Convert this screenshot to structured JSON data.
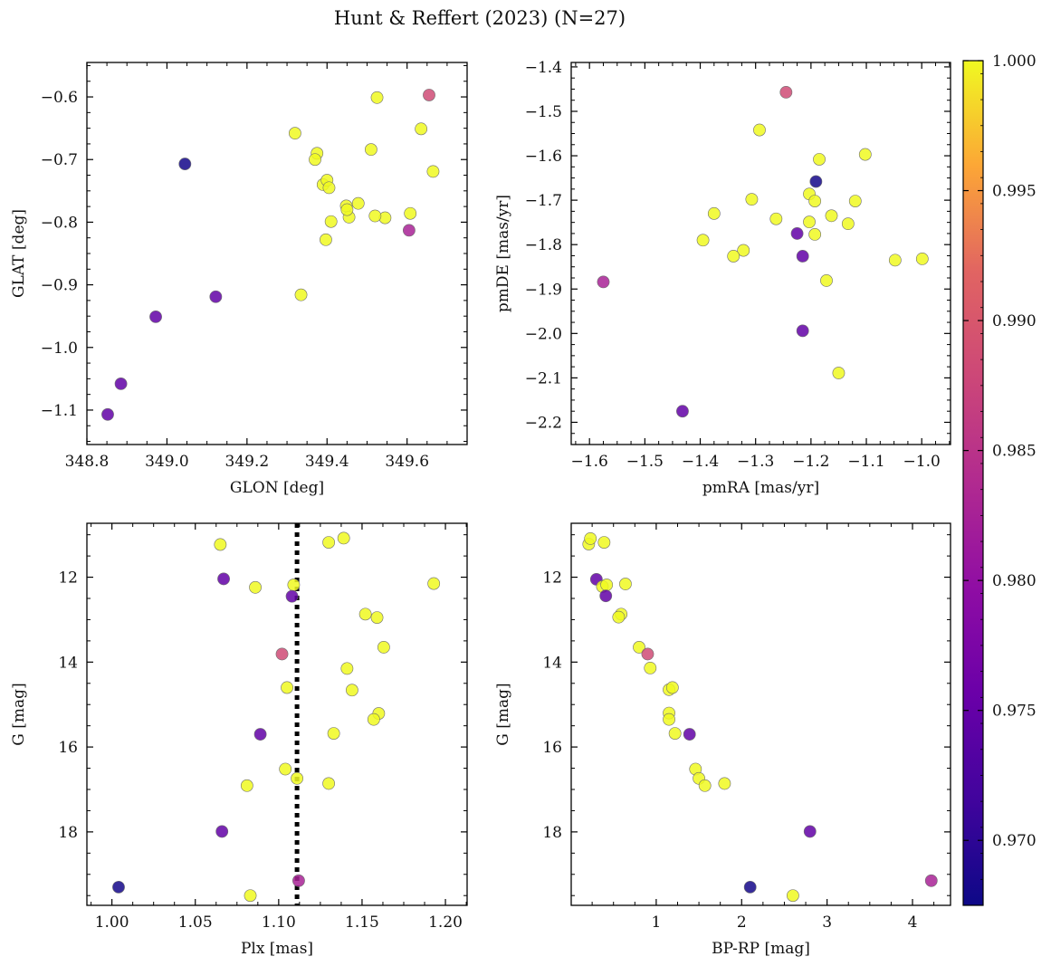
{
  "figure": {
    "title": "Hunt & Reffert (2023) (N=27)"
  },
  "colorbar": {
    "min": 0.9675,
    "max": 1.0,
    "ticks": [
      "0.970",
      "0.975",
      "0.980",
      "0.985",
      "0.990",
      "0.995",
      "1.000"
    ],
    "tick_values": [
      0.97,
      0.975,
      0.98,
      0.985,
      0.99,
      0.995,
      1.0
    ],
    "colormap": "plasma"
  },
  "chart_data": [
    {
      "type": "scatter",
      "xlabel": "GLON [deg]",
      "ylabel": "GLAT [deg]",
      "xlim": [
        348.8,
        349.75
      ],
      "ylim": [
        -1.155,
        -0.545
      ],
      "y_inverted": false,
      "xticks": [
        348.8,
        349.0,
        349.2,
        349.4,
        349.6
      ],
      "xtick_labels": [
        "348.8",
        "349.0",
        "349.2",
        "349.4",
        "349.6"
      ],
      "yticks": [
        -1.1,
        -1.0,
        -0.9,
        -0.8,
        -0.7,
        -0.6
      ],
      "ytick_labels": [
        "−1.1",
        "−1.0",
        "−0.9",
        "−0.8",
        "−0.7",
        "−0.6"
      ],
      "points": [
        {
          "x": 349.525,
          "y": -0.601,
          "c": 1.0
        },
        {
          "x": 349.655,
          "y": -0.597,
          "c": 0.986
        },
        {
          "x": 349.635,
          "y": -0.651,
          "c": 1.0
        },
        {
          "x": 349.665,
          "y": -0.719,
          "c": 1.0
        },
        {
          "x": 349.32,
          "y": -0.658,
          "c": 1.0
        },
        {
          "x": 349.51,
          "y": -0.684,
          "c": 1.0
        },
        {
          "x": 349.375,
          "y": -0.69,
          "c": 1.0
        },
        {
          "x": 349.37,
          "y": -0.7,
          "c": 1.0
        },
        {
          "x": 349.39,
          "y": -0.74,
          "c": 1.0
        },
        {
          "x": 349.4,
          "y": -0.733,
          "c": 1.0
        },
        {
          "x": 349.405,
          "y": -0.745,
          "c": 1.0
        },
        {
          "x": 349.448,
          "y": -0.774,
          "c": 1.0
        },
        {
          "x": 349.478,
          "y": -0.77,
          "c": 1.0
        },
        {
          "x": 349.41,
          "y": -0.799,
          "c": 1.0
        },
        {
          "x": 349.455,
          "y": -0.792,
          "c": 1.0
        },
        {
          "x": 349.545,
          "y": -0.793,
          "c": 1.0
        },
        {
          "x": 349.608,
          "y": -0.786,
          "c": 1.0
        },
        {
          "x": 349.605,
          "y": -0.813,
          "c": 0.981
        },
        {
          "x": 349.397,
          "y": -0.828,
          "c": 1.0
        },
        {
          "x": 349.335,
          "y": -0.916,
          "c": 1.0
        },
        {
          "x": 349.045,
          "y": -0.707,
          "c": 0.968
        },
        {
          "x": 349.122,
          "y": -0.919,
          "c": 0.974
        },
        {
          "x": 348.972,
          "y": -0.951,
          "c": 0.974
        },
        {
          "x": 348.885,
          "y": -1.058,
          "c": 0.974
        },
        {
          "x": 348.852,
          "y": -1.107,
          "c": 0.974
        },
        {
          "x": 349.45,
          "y": -0.78,
          "c": 1.0
        },
        {
          "x": 349.52,
          "y": -0.79,
          "c": 1.0
        }
      ]
    },
    {
      "type": "scatter",
      "xlabel": "pmRA [mas/yr]",
      "ylabel": "pmDE [mas/yr]",
      "xlim": [
        -1.633,
        -0.948
      ],
      "ylim": [
        -2.25,
        -1.39
      ],
      "y_inverted": false,
      "xticks": [
        -1.6,
        -1.5,
        -1.4,
        -1.3,
        -1.2,
        -1.1,
        -1.0
      ],
      "xtick_labels": [
        "−1.6",
        "−1.5",
        "−1.4",
        "−1.3",
        "−1.2",
        "−1.1",
        "−1.0"
      ],
      "yticks": [
        -2.2,
        -2.1,
        -2.0,
        -1.9,
        -1.8,
        -1.7,
        -1.6,
        -1.5,
        -1.4
      ],
      "ytick_labels": [
        "−2.2",
        "−2.1",
        "−2.0",
        "−1.9",
        "−1.8",
        "−1.7",
        "−1.6",
        "−1.5",
        "−1.4"
      ],
      "points": [
        {
          "x": -1.245,
          "y": -1.457,
          "c": 0.986
        },
        {
          "x": -1.293,
          "y": -1.542,
          "c": 1.0
        },
        {
          "x": -1.102,
          "y": -1.597,
          "c": 1.0
        },
        {
          "x": -1.185,
          "y": -1.608,
          "c": 1.0
        },
        {
          "x": -1.191,
          "y": -1.658,
          "c": 0.968
        },
        {
          "x": -1.203,
          "y": -1.686,
          "c": 1.0
        },
        {
          "x": -1.307,
          "y": -1.698,
          "c": 1.0
        },
        {
          "x": -1.193,
          "y": -1.702,
          "c": 1.0
        },
        {
          "x": -1.12,
          "y": -1.702,
          "c": 1.0
        },
        {
          "x": -1.375,
          "y": -1.73,
          "c": 1.0
        },
        {
          "x": -1.163,
          "y": -1.735,
          "c": 1.0
        },
        {
          "x": -1.263,
          "y": -1.742,
          "c": 1.0
        },
        {
          "x": -1.203,
          "y": -1.749,
          "c": 1.0
        },
        {
          "x": -1.133,
          "y": -1.753,
          "c": 1.0
        },
        {
          "x": -1.225,
          "y": -1.775,
          "c": 0.974
        },
        {
          "x": -1.193,
          "y": -1.777,
          "c": 1.0
        },
        {
          "x": -1.395,
          "y": -1.79,
          "c": 1.0
        },
        {
          "x": -1.322,
          "y": -1.813,
          "c": 1.0
        },
        {
          "x": -1.215,
          "y": -1.826,
          "c": 0.974
        },
        {
          "x": -1.34,
          "y": -1.826,
          "c": 1.0
        },
        {
          "x": -1.048,
          "y": -1.835,
          "c": 1.0
        },
        {
          "x": -0.999,
          "y": -1.832,
          "c": 1.0
        },
        {
          "x": -1.172,
          "y": -1.881,
          "c": 1.0
        },
        {
          "x": -1.575,
          "y": -1.884,
          "c": 0.981
        },
        {
          "x": -1.215,
          "y": -1.994,
          "c": 0.974
        },
        {
          "x": -1.15,
          "y": -2.089,
          "c": 1.0
        },
        {
          "x": -1.432,
          "y": -2.175,
          "c": 0.974
        }
      ]
    },
    {
      "type": "scatter",
      "xlabel": "Plx [mas]",
      "ylabel": "G [mag]",
      "xlim": [
        0.985,
        1.213
      ],
      "ylim": [
        19.73,
        10.73
      ],
      "y_inverted": true,
      "reference_line": {
        "x": 1.111,
        "style": "dotted"
      },
      "xticks": [
        1.0,
        1.05,
        1.1,
        1.15,
        1.2
      ],
      "xtick_labels": [
        "1.00",
        "1.05",
        "1.10",
        "1.15",
        "1.20"
      ],
      "yticks": [
        12,
        14,
        16,
        18
      ],
      "ytick_labels": [
        "12",
        "14",
        "16",
        "18"
      ],
      "points": [
        {
          "x": 1.065,
          "y": 11.23,
          "c": 1.0
        },
        {
          "x": 1.139,
          "y": 11.08,
          "c": 1.0
        },
        {
          "x": 1.13,
          "y": 11.18,
          "c": 1.0
        },
        {
          "x": 1.067,
          "y": 12.04,
          "c": 0.974
        },
        {
          "x": 1.086,
          "y": 12.24,
          "c": 1.0
        },
        {
          "x": 1.109,
          "y": 12.18,
          "c": 1.0
        },
        {
          "x": 1.193,
          "y": 12.15,
          "c": 1.0
        },
        {
          "x": 1.108,
          "y": 12.45,
          "c": 0.974
        },
        {
          "x": 1.152,
          "y": 12.87,
          "c": 1.0
        },
        {
          "x": 1.159,
          "y": 12.95,
          "c": 1.0
        },
        {
          "x": 1.163,
          "y": 13.65,
          "c": 1.0
        },
        {
          "x": 1.102,
          "y": 13.81,
          "c": 0.986
        },
        {
          "x": 1.141,
          "y": 14.15,
          "c": 1.0
        },
        {
          "x": 1.105,
          "y": 14.6,
          "c": 1.0
        },
        {
          "x": 1.144,
          "y": 14.66,
          "c": 1.0
        },
        {
          "x": 1.16,
          "y": 15.21,
          "c": 1.0
        },
        {
          "x": 1.157,
          "y": 15.35,
          "c": 1.0
        },
        {
          "x": 1.089,
          "y": 15.7,
          "c": 0.974
        },
        {
          "x": 1.133,
          "y": 15.68,
          "c": 1.0
        },
        {
          "x": 1.104,
          "y": 16.52,
          "c": 1.0
        },
        {
          "x": 1.111,
          "y": 16.74,
          "c": 1.0
        },
        {
          "x": 1.081,
          "y": 16.91,
          "c": 1.0
        },
        {
          "x": 1.13,
          "y": 16.86,
          "c": 1.0
        },
        {
          "x": 1.066,
          "y": 17.99,
          "c": 0.974
        },
        {
          "x": 1.004,
          "y": 19.3,
          "c": 0.968
        },
        {
          "x": 1.112,
          "y": 19.15,
          "c": 0.981
        },
        {
          "x": 1.083,
          "y": 19.5,
          "c": 1.0
        }
      ]
    },
    {
      "type": "scatter",
      "xlabel": "BP-RP [mag]",
      "ylabel": "G [mag]",
      "xlim": [
        0.005,
        4.445
      ],
      "ylim": [
        19.73,
        10.73
      ],
      "y_inverted": true,
      "xticks": [
        1,
        2,
        3,
        4
      ],
      "xtick_labels": [
        "1",
        "2",
        "3",
        "4"
      ],
      "yticks": [
        12,
        14,
        16,
        18
      ],
      "ytick_labels": [
        "12",
        "14",
        "16",
        "18"
      ],
      "points": [
        {
          "x": 0.21,
          "y": 11.22,
          "c": 1.0
        },
        {
          "x": 0.23,
          "y": 11.09,
          "c": 1.0
        },
        {
          "x": 0.39,
          "y": 11.18,
          "c": 1.0
        },
        {
          "x": 0.3,
          "y": 12.05,
          "c": 0.974
        },
        {
          "x": 0.37,
          "y": 12.22,
          "c": 1.0
        },
        {
          "x": 0.42,
          "y": 12.18,
          "c": 1.0
        },
        {
          "x": 0.64,
          "y": 12.16,
          "c": 1.0
        },
        {
          "x": 0.41,
          "y": 12.44,
          "c": 0.974
        },
        {
          "x": 0.59,
          "y": 12.87,
          "c": 1.0
        },
        {
          "x": 0.56,
          "y": 12.94,
          "c": 1.0
        },
        {
          "x": 0.8,
          "y": 13.65,
          "c": 1.0
        },
        {
          "x": 0.9,
          "y": 13.81,
          "c": 0.986
        },
        {
          "x": 0.93,
          "y": 14.14,
          "c": 1.0
        },
        {
          "x": 1.15,
          "y": 14.65,
          "c": 1.0
        },
        {
          "x": 1.19,
          "y": 14.6,
          "c": 1.0
        },
        {
          "x": 1.15,
          "y": 15.2,
          "c": 1.0
        },
        {
          "x": 1.15,
          "y": 15.35,
          "c": 1.0
        },
        {
          "x": 1.22,
          "y": 15.68,
          "c": 1.0
        },
        {
          "x": 1.39,
          "y": 15.7,
          "c": 0.974
        },
        {
          "x": 1.46,
          "y": 16.52,
          "c": 1.0
        },
        {
          "x": 1.5,
          "y": 16.74,
          "c": 1.0
        },
        {
          "x": 1.57,
          "y": 16.91,
          "c": 1.0
        },
        {
          "x": 1.8,
          "y": 16.86,
          "c": 1.0
        },
        {
          "x": 2.8,
          "y": 17.99,
          "c": 0.974
        },
        {
          "x": 2.1,
          "y": 19.3,
          "c": 0.968
        },
        {
          "x": 2.6,
          "y": 19.5,
          "c": 1.0
        },
        {
          "x": 4.22,
          "y": 19.15,
          "c": 0.981
        }
      ]
    }
  ]
}
